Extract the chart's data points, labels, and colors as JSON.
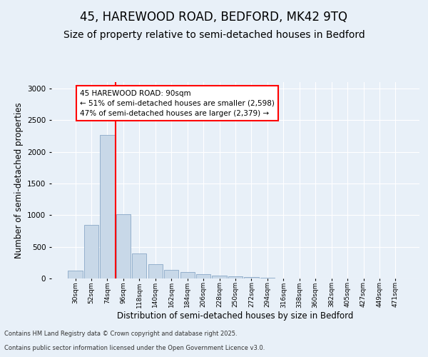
{
  "title_line1": "45, HAREWOOD ROAD, BEDFORD, MK42 9TQ",
  "title_line2": "Size of property relative to semi-detached houses in Bedford",
  "xlabel": "Distribution of semi-detached houses by size in Bedford",
  "ylabel": "Number of semi-detached properties",
  "categories": [
    "30sqm",
    "52sqm",
    "74sqm",
    "96sqm",
    "118sqm",
    "140sqm",
    "162sqm",
    "184sqm",
    "206sqm",
    "228sqm",
    "250sqm",
    "272sqm",
    "294sqm",
    "316sqm",
    "338sqm",
    "360sqm",
    "382sqm",
    "405sqm",
    "427sqm",
    "449sqm",
    "471sqm"
  ],
  "values": [
    120,
    840,
    2270,
    1010,
    390,
    230,
    140,
    100,
    70,
    50,
    30,
    20,
    10,
    5,
    5,
    3,
    2,
    1,
    1,
    0,
    0
  ],
  "bar_color": "#c8d8e8",
  "bar_edge_color": "#7a9cbf",
  "red_line_index": 2.5,
  "annotation_title": "45 HAREWOOD ROAD: 90sqm",
  "annotation_line2": "← 51% of semi-detached houses are smaller (2,598)",
  "annotation_line3": "47% of semi-detached houses are larger (2,379) →",
  "ylim": [
    0,
    3100
  ],
  "yticks": [
    0,
    500,
    1000,
    1500,
    2000,
    2500,
    3000
  ],
  "background_color": "#e8f0f8",
  "plot_bg_color": "#e8f0f8",
  "footer_line1": "Contains HM Land Registry data © Crown copyright and database right 2025.",
  "footer_line2": "Contains public sector information licensed under the Open Government Licence v3.0.",
  "grid_color": "#ffffff",
  "title_fontsize": 12,
  "subtitle_fontsize": 10,
  "tick_fontsize": 6.5,
  "axis_label_fontsize": 8.5
}
